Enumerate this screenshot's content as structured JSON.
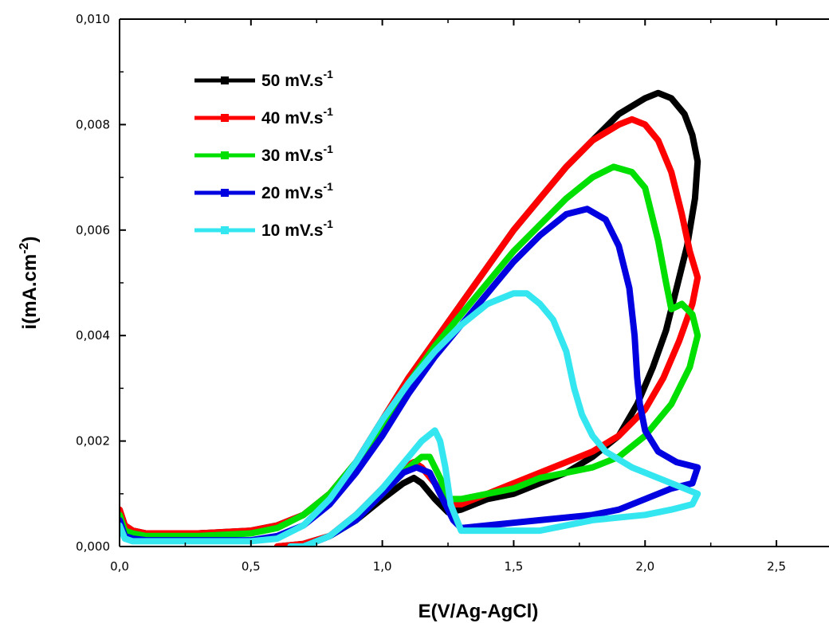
{
  "chart_data": {
    "type": "line",
    "xlabel": "E(V/Ag-AgCl)",
    "ylabel_main": "i(mA.cm",
    "ylabel_sup": "-2",
    "ylabel_close": ")",
    "xlim": [
      0.0,
      2.7
    ],
    "ylim": [
      0.0,
      0.01
    ],
    "xticks": [
      "0,0",
      "0,5",
      "1,0",
      "1,5",
      "2,0",
      "2,5"
    ],
    "xtick_values": [
      0.0,
      0.5,
      1.0,
      1.5,
      2.0,
      2.5
    ],
    "yticks": [
      "0,000",
      "0,002",
      "0,004",
      "0,006",
      "0,008",
      "0,010"
    ],
    "ytick_values": [
      0.0,
      0.002,
      0.004,
      0.006,
      0.008,
      0.01
    ],
    "legend_position": "top-left",
    "series": [
      {
        "name": "50 mV.s",
        "name_sup": "-1",
        "color": "#000000",
        "points": [
          [
            0.0,
            0.0007
          ],
          [
            0.02,
            0.0004
          ],
          [
            0.05,
            0.0003
          ],
          [
            0.1,
            0.00025
          ],
          [
            0.3,
            0.00025
          ],
          [
            0.5,
            0.0003
          ],
          [
            0.6,
            0.0004
          ],
          [
            0.7,
            0.0006
          ],
          [
            0.8,
            0.001
          ],
          [
            0.9,
            0.0016
          ],
          [
            1.0,
            0.0024
          ],
          [
            1.1,
            0.0032
          ],
          [
            1.2,
            0.0039
          ],
          [
            1.3,
            0.0046
          ],
          [
            1.4,
            0.0053
          ],
          [
            1.5,
            0.006
          ],
          [
            1.6,
            0.0066
          ],
          [
            1.7,
            0.0072
          ],
          [
            1.8,
            0.0077
          ],
          [
            1.9,
            0.0082
          ],
          [
            2.0,
            0.0085
          ],
          [
            2.05,
            0.0086
          ],
          [
            2.1,
            0.0085
          ],
          [
            2.15,
            0.0082
          ],
          [
            2.18,
            0.0078
          ],
          [
            2.2,
            0.0073
          ],
          [
            2.19,
            0.0066
          ],
          [
            2.16,
            0.0057
          ],
          [
            2.12,
            0.0049
          ],
          [
            2.08,
            0.0041
          ],
          [
            2.03,
            0.0034
          ],
          [
            1.97,
            0.0027
          ],
          [
            1.9,
            0.0021
          ],
          [
            1.8,
            0.0017
          ],
          [
            1.7,
            0.0014
          ],
          [
            1.6,
            0.0012
          ],
          [
            1.5,
            0.001
          ],
          [
            1.4,
            0.0009
          ],
          [
            1.3,
            0.0007
          ],
          [
            1.25,
            0.00065
          ],
          [
            1.2,
            0.0009
          ],
          [
            1.15,
            0.0012
          ],
          [
            1.12,
            0.0013
          ],
          [
            1.08,
            0.0012
          ],
          [
            1.0,
            0.0009
          ],
          [
            0.9,
            0.0005
          ],
          [
            0.8,
            0.0002
          ],
          [
            0.7,
            5e-05
          ],
          [
            0.6,
            0.0
          ]
        ]
      },
      {
        "name": "40 mV.s",
        "name_sup": "-1",
        "color": "#ff0000",
        "points": [
          [
            0.0,
            0.0007
          ],
          [
            0.02,
            0.0004
          ],
          [
            0.05,
            0.0003
          ],
          [
            0.1,
            0.00025
          ],
          [
            0.3,
            0.00025
          ],
          [
            0.5,
            0.0003
          ],
          [
            0.6,
            0.0004
          ],
          [
            0.7,
            0.0006
          ],
          [
            0.8,
            0.001
          ],
          [
            0.9,
            0.0016
          ],
          [
            1.0,
            0.0024
          ],
          [
            1.1,
            0.0032
          ],
          [
            1.2,
            0.0039
          ],
          [
            1.3,
            0.0046
          ],
          [
            1.4,
            0.0053
          ],
          [
            1.5,
            0.006
          ],
          [
            1.6,
            0.0066
          ],
          [
            1.7,
            0.0072
          ],
          [
            1.8,
            0.0077
          ],
          [
            1.9,
            0.008
          ],
          [
            1.95,
            0.0081
          ],
          [
            2.0,
            0.008
          ],
          [
            2.05,
            0.0077
          ],
          [
            2.1,
            0.0071
          ],
          [
            2.14,
            0.0063
          ],
          [
            2.17,
            0.0056
          ],
          [
            2.2,
            0.0051
          ],
          [
            2.18,
            0.0046
          ],
          [
            2.13,
            0.0039
          ],
          [
            2.07,
            0.0032
          ],
          [
            2.0,
            0.0026
          ],
          [
            1.9,
            0.0021
          ],
          [
            1.8,
            0.0018
          ],
          [
            1.7,
            0.0016
          ],
          [
            1.6,
            0.0014
          ],
          [
            1.5,
            0.0012
          ],
          [
            1.4,
            0.001
          ],
          [
            1.3,
            0.0008
          ],
          [
            1.25,
            0.0008
          ],
          [
            1.2,
            0.0012
          ],
          [
            1.15,
            0.0015
          ],
          [
            1.12,
            0.0016
          ],
          [
            1.08,
            0.0015
          ],
          [
            1.0,
            0.0011
          ],
          [
            0.9,
            0.0006
          ],
          [
            0.8,
            0.0002
          ],
          [
            0.7,
            5e-05
          ],
          [
            0.6,
            0.0
          ]
        ]
      },
      {
        "name": "30 mV.s",
        "name_sup": "-1",
        "color": "#00e000",
        "points": [
          [
            0.0,
            0.0006
          ],
          [
            0.02,
            0.0003
          ],
          [
            0.05,
            0.00025
          ],
          [
            0.1,
            0.0002
          ],
          [
            0.3,
            0.0002
          ],
          [
            0.5,
            0.00025
          ],
          [
            0.6,
            0.00035
          ],
          [
            0.7,
            0.0006
          ],
          [
            0.8,
            0.001
          ],
          [
            0.9,
            0.0016
          ],
          [
            1.0,
            0.0023
          ],
          [
            1.1,
            0.0031
          ],
          [
            1.2,
            0.0038
          ],
          [
            1.3,
            0.0044
          ],
          [
            1.4,
            0.005
          ],
          [
            1.5,
            0.0056
          ],
          [
            1.6,
            0.0061
          ],
          [
            1.7,
            0.0066
          ],
          [
            1.8,
            0.007
          ],
          [
            1.88,
            0.0072
          ],
          [
            1.95,
            0.0071
          ],
          [
            2.0,
            0.0068
          ],
          [
            2.05,
            0.0058
          ],
          [
            2.08,
            0.005
          ],
          [
            2.1,
            0.0045
          ],
          [
            2.14,
            0.0046
          ],
          [
            2.18,
            0.0044
          ],
          [
            2.2,
            0.004
          ],
          [
            2.17,
            0.0034
          ],
          [
            2.1,
            0.0027
          ],
          [
            2.0,
            0.0021
          ],
          [
            1.9,
            0.0017
          ],
          [
            1.8,
            0.0015
          ],
          [
            1.7,
            0.0014
          ],
          [
            1.6,
            0.0013
          ],
          [
            1.5,
            0.0011
          ],
          [
            1.4,
            0.001
          ],
          [
            1.3,
            0.0009
          ],
          [
            1.25,
            0.0009
          ],
          [
            1.22,
            0.0013
          ],
          [
            1.18,
            0.0017
          ],
          [
            1.15,
            0.0017
          ],
          [
            1.1,
            0.0015
          ],
          [
            1.0,
            0.001
          ],
          [
            0.9,
            0.0005
          ],
          [
            0.8,
            0.0002
          ],
          [
            0.7,
            0.0
          ],
          [
            0.68,
            0.0
          ]
        ]
      },
      {
        "name": "20 mV.s",
        "name_sup": "-1",
        "color": "#0000e0",
        "points": [
          [
            0.0,
            0.0005
          ],
          [
            0.02,
            0.0002
          ],
          [
            0.05,
            0.00015
          ],
          [
            0.1,
            0.00012
          ],
          [
            0.3,
            0.00012
          ],
          [
            0.5,
            0.00012
          ],
          [
            0.6,
            0.0002
          ],
          [
            0.7,
            0.0004
          ],
          [
            0.8,
            0.0008
          ],
          [
            0.9,
            0.0014
          ],
          [
            1.0,
            0.0021
          ],
          [
            1.1,
            0.0029
          ],
          [
            1.2,
            0.0036
          ],
          [
            1.3,
            0.0042
          ],
          [
            1.4,
            0.0048
          ],
          [
            1.5,
            0.0054
          ],
          [
            1.6,
            0.0059
          ],
          [
            1.7,
            0.0063
          ],
          [
            1.78,
            0.0064
          ],
          [
            1.85,
            0.0062
          ],
          [
            1.9,
            0.0057
          ],
          [
            1.94,
            0.0049
          ],
          [
            1.96,
            0.004
          ],
          [
            1.97,
            0.0032
          ],
          [
            1.98,
            0.0027
          ],
          [
            2.0,
            0.0022
          ],
          [
            2.05,
            0.0018
          ],
          [
            2.12,
            0.0016
          ],
          [
            2.2,
            0.0015
          ],
          [
            2.18,
            0.0012
          ],
          [
            2.1,
            0.0011
          ],
          [
            2.0,
            0.0009
          ],
          [
            1.9,
            0.0007
          ],
          [
            1.8,
            0.0006
          ],
          [
            1.6,
            0.0005
          ],
          [
            1.4,
            0.0004
          ],
          [
            1.3,
            0.00035
          ],
          [
            1.27,
            0.0005
          ],
          [
            1.22,
            0.001
          ],
          [
            1.18,
            0.0014
          ],
          [
            1.13,
            0.0015
          ],
          [
            1.08,
            0.0014
          ],
          [
            1.0,
            0.001
          ],
          [
            0.9,
            0.0005
          ],
          [
            0.8,
            0.0002
          ],
          [
            0.7,
            0.0
          ],
          [
            0.65,
            0.0
          ]
        ]
      },
      {
        "name": "10 mV.s",
        "name_sup": "-1",
        "color": "#33e6f0",
        "points": [
          [
            0.0,
            0.0004
          ],
          [
            0.02,
            0.00015
          ],
          [
            0.05,
            0.0001
          ],
          [
            0.1,
            0.0001
          ],
          [
            0.3,
            0.0001
          ],
          [
            0.5,
            0.0001
          ],
          [
            0.6,
            0.00015
          ],
          [
            0.7,
            0.0004
          ],
          [
            0.8,
            0.0009
          ],
          [
            0.9,
            0.0016
          ],
          [
            1.0,
            0.0024
          ],
          [
            1.1,
            0.0031
          ],
          [
            1.2,
            0.0037
          ],
          [
            1.3,
            0.0042
          ],
          [
            1.4,
            0.0046
          ],
          [
            1.5,
            0.0048
          ],
          [
            1.55,
            0.0048
          ],
          [
            1.6,
            0.0046
          ],
          [
            1.65,
            0.0043
          ],
          [
            1.7,
            0.0037
          ],
          [
            1.73,
            0.003
          ],
          [
            1.76,
            0.0025
          ],
          [
            1.8,
            0.0021
          ],
          [
            1.85,
            0.0018
          ],
          [
            1.95,
            0.0015
          ],
          [
            2.05,
            0.0013
          ],
          [
            2.15,
            0.0011
          ],
          [
            2.2,
            0.001
          ],
          [
            2.18,
            0.0008
          ],
          [
            2.1,
            0.0007
          ],
          [
            2.0,
            0.0006
          ],
          [
            1.8,
            0.0005
          ],
          [
            1.6,
            0.0003
          ],
          [
            1.4,
            0.0003
          ],
          [
            1.3,
            0.0003
          ],
          [
            1.26,
            0.0008
          ],
          [
            1.24,
            0.0015
          ],
          [
            1.22,
            0.002
          ],
          [
            1.2,
            0.0022
          ],
          [
            1.15,
            0.002
          ],
          [
            1.1,
            0.0017
          ],
          [
            1.0,
            0.0011
          ],
          [
            0.9,
            0.0006
          ],
          [
            0.8,
            0.0002
          ],
          [
            0.7,
            0.0
          ],
          [
            0.65,
            0.0
          ]
        ]
      }
    ]
  }
}
